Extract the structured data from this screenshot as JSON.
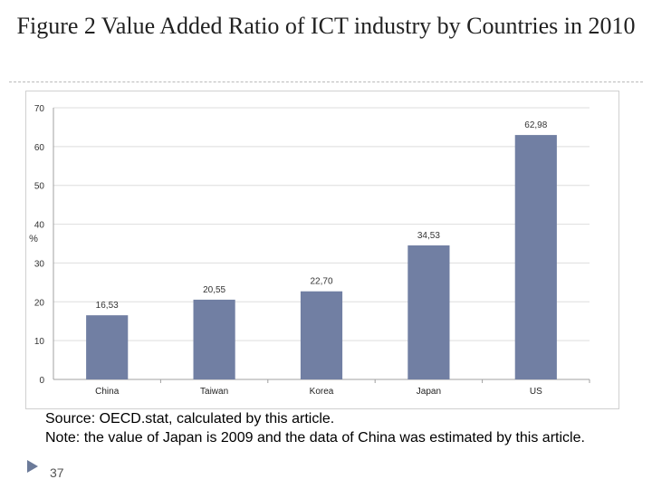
{
  "slide": {
    "title": "Figure 2 Value Added Ratio of ICT industry by Countries in 2010",
    "source": "Source: OECD.stat, calculated by this article.",
    "note": "Note: the value of Japan is 2009 and the data of China was estimated by this article.",
    "page_number": "37"
  },
  "colors": {
    "bar": "#717fa3",
    "axis": "#a0a0a0",
    "grid": "#dedede"
  },
  "chart_data": {
    "type": "bar",
    "title": "Figure 2 Value Added Ratio of ICT industry by Countries in 2010",
    "xlabel": "",
    "ylabel": "%",
    "categories": [
      "China",
      "Taiwan",
      "Korea",
      "Japan",
      "US"
    ],
    "values": [
      16.53,
      20.55,
      22.7,
      34.53,
      62.98
    ],
    "data_labels": [
      "16,53",
      "20,55",
      "22,70",
      "34,53",
      "62,98"
    ],
    "ylim": [
      0,
      70
    ],
    "yticks": [
      0,
      10,
      20,
      30,
      40,
      50,
      60,
      70
    ],
    "grid": true,
    "legend": "none"
  }
}
